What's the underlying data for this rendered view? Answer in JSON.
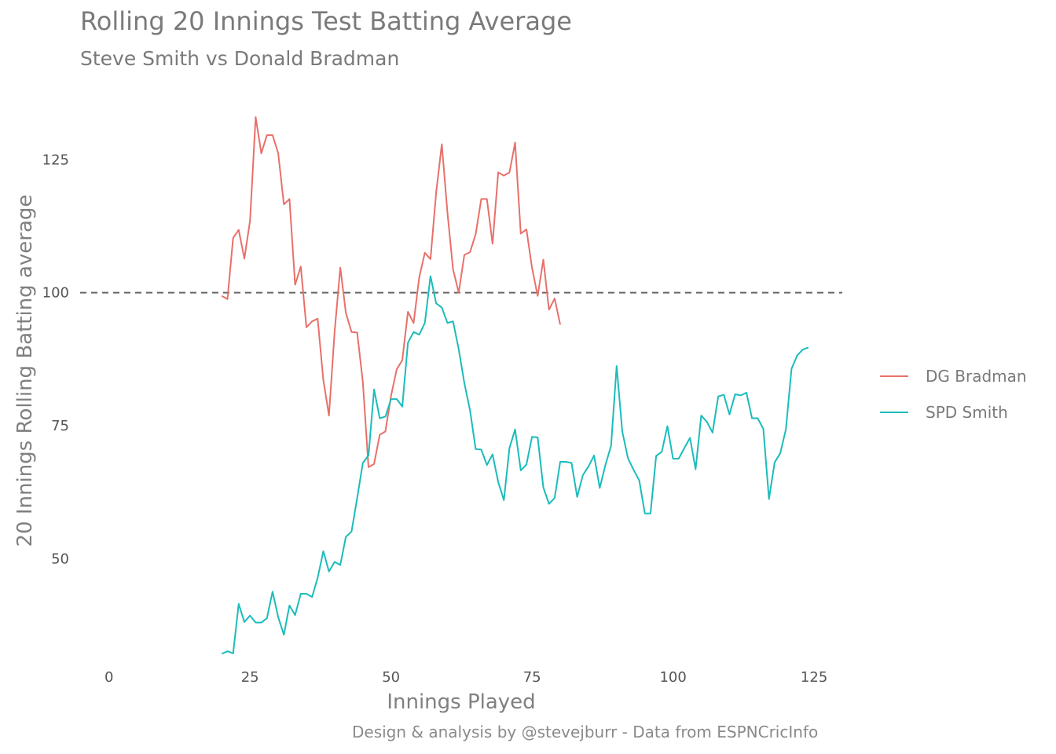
{
  "chart_data": {
    "type": "line",
    "title": "Rolling 20 Innings Test Batting Average",
    "subtitle": "Steve Smith vs Donald Bradman",
    "xlabel": "Innings Played",
    "ylabel": "20 Innings Rolling Batting average",
    "caption": "Design & analysis by @stevejburr - Data from ESPNCricInfo",
    "xlim": [
      -4,
      130
    ],
    "ylim": [
      31,
      137
    ],
    "x_ticks": [
      {
        "value": 0,
        "label": "0"
      },
      {
        "value": 25,
        "label": "25"
      },
      {
        "value": 50,
        "label": "50"
      },
      {
        "value": 75,
        "label": "75"
      },
      {
        "value": 100,
        "label": "100"
      },
      {
        "value": 125,
        "label": "125"
      }
    ],
    "y_ticks": [
      {
        "value": 50,
        "label": "50"
      },
      {
        "value": 75,
        "label": "75"
      },
      {
        "value": 100,
        "label": "100"
      },
      {
        "value": 125,
        "label": "125"
      }
    ],
    "reference_line": {
      "y": 100,
      "style": "dashed",
      "color": "#666666"
    },
    "grid": false,
    "legend_position": "right",
    "series": [
      {
        "name": "DG Bradman",
        "color": "#e8706a",
        "x": [
          20,
          21,
          22,
          23,
          24,
          25,
          26,
          27,
          28,
          29,
          30,
          31,
          32,
          33,
          34,
          35,
          36,
          37,
          38,
          39,
          40,
          41,
          42,
          43,
          44,
          45,
          46,
          47,
          48,
          49,
          50,
          51,
          52,
          53,
          54,
          55,
          56,
          57,
          58,
          59,
          60,
          61,
          62,
          63,
          64,
          65,
          66,
          67,
          68,
          69,
          70,
          71,
          72,
          73,
          74,
          75,
          76,
          77,
          78,
          79,
          80
        ],
        "values": [
          99.4,
          98.8,
          110.3,
          111.8,
          106.4,
          113.5,
          133.0,
          126.2,
          129.6,
          129.6,
          126.2,
          116.6,
          117.6,
          101.5,
          104.9,
          93.5,
          94.6,
          95.1,
          83.6,
          76.9,
          92.7,
          104.7,
          96.2,
          92.6,
          92.5,
          83.2,
          67.2,
          67.8,
          73.3,
          73.9,
          80.6,
          85.6,
          87.3,
          96.4,
          94.3,
          102.9,
          107.5,
          106.3,
          118.8,
          127.9,
          115.0,
          104.4,
          100.0,
          107.1,
          107.6,
          111.0,
          117.6,
          117.6,
          109.2,
          122.6,
          122.0,
          122.6,
          128.2,
          111.1,
          111.9,
          104.7,
          99.4,
          106.2,
          96.8,
          98.9,
          94.0
        ]
      },
      {
        "name": "SPD Smith",
        "color": "#1bbcbc",
        "x": [
          20,
          21,
          22,
          23,
          24,
          25,
          26,
          27,
          28,
          29,
          30,
          31,
          32,
          33,
          34,
          35,
          36,
          37,
          38,
          39,
          40,
          41,
          42,
          43,
          44,
          45,
          46,
          47,
          48,
          49,
          50,
          51,
          52,
          53,
          54,
          55,
          56,
          57,
          58,
          59,
          60,
          61,
          62,
          63,
          64,
          65,
          66,
          67,
          68,
          69,
          70,
          71,
          72,
          73,
          74,
          75,
          76,
          77,
          78,
          79,
          80,
          81,
          82,
          83,
          84,
          85,
          86,
          87,
          88,
          89,
          90,
          91,
          92,
          93,
          94,
          95,
          96,
          97,
          98,
          99,
          100,
          101,
          102,
          103,
          104,
          105,
          106,
          107,
          108,
          109,
          110,
          111,
          112,
          113,
          114,
          115,
          116,
          117,
          118,
          119,
          120,
          121,
          122,
          123,
          124
        ],
        "values": [
          32.1,
          32.6,
          32.2,
          41.5,
          38.1,
          39.3,
          38.0,
          38.0,
          38.8,
          43.8,
          39.0,
          35.7,
          41.2,
          39.4,
          43.4,
          43.4,
          42.8,
          46.4,
          51.4,
          47.6,
          49.4,
          48.8,
          54.1,
          55.1,
          61.4,
          68.0,
          69.4,
          81.8,
          76.4,
          76.7,
          80.0,
          80.0,
          78.6,
          90.6,
          92.6,
          92.1,
          94.3,
          103.1,
          98.0,
          97.2,
          94.3,
          94.6,
          89.4,
          83.0,
          77.9,
          70.6,
          70.5,
          67.6,
          69.6,
          64.4,
          61.0,
          70.8,
          74.3,
          66.6,
          67.7,
          72.9,
          72.8,
          63.4,
          60.3,
          61.4,
          68.2,
          68.2,
          68.0,
          61.6,
          65.7,
          67.3,
          69.4,
          63.3,
          67.6,
          71.2,
          86.2,
          73.9,
          68.9,
          66.7,
          64.7,
          58.5,
          58.5,
          69.3,
          70.1,
          74.9,
          68.8,
          68.8,
          70.8,
          72.7,
          66.8,
          76.9,
          75.7,
          73.7,
          80.5,
          80.8,
          77.1,
          80.9,
          80.7,
          81.2,
          76.4,
          76.4,
          74.4,
          61.2,
          68.1,
          69.8,
          74.3,
          85.7,
          88.2,
          89.3,
          89.7
        ]
      }
    ]
  }
}
